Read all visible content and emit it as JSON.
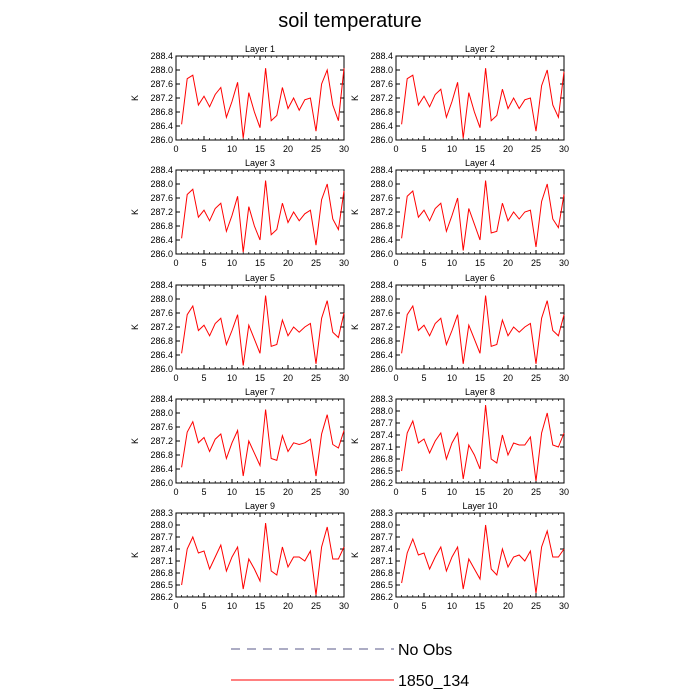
{
  "figure": {
    "title": "soil temperature"
  },
  "legend": {
    "items": [
      {
        "label": "No Obs",
        "color": "#5a5a8a",
        "style": "dashed"
      },
      {
        "label": "1850_134",
        "color": "#ff0000",
        "style": "solid"
      }
    ]
  },
  "chart_data": [
    {
      "type": "line",
      "title": "Layer 1",
      "xlabel": "",
      "ylabel": "K",
      "xlim": [
        0,
        30
      ],
      "ylim": [
        286.0,
        288.4
      ],
      "xticks": [
        0,
        5,
        10,
        15,
        20,
        25,
        30
      ],
      "yticks": [
        286.0,
        286.4,
        286.8,
        287.2,
        287.6,
        288.0,
        288.4
      ],
      "ytick_labels": [
        "286.0",
        "286.4",
        "286.8",
        "287.2",
        "287.6",
        "288.0",
        "288.4"
      ],
      "x": [
        1,
        2,
        3,
        4,
        5,
        6,
        7,
        8,
        9,
        10,
        11,
        12,
        13,
        14,
        15,
        16,
        17,
        18,
        19,
        20,
        21,
        22,
        23,
        24,
        25,
        26,
        27,
        28,
        29,
        30
      ],
      "series": [
        {
          "name": "1850_134",
          "color": "#ff0000",
          "values": [
            286.45,
            287.75,
            287.85,
            287.0,
            287.25,
            286.95,
            287.3,
            287.5,
            286.65,
            287.1,
            287.65,
            286.05,
            287.35,
            286.8,
            286.35,
            288.05,
            286.55,
            286.7,
            287.5,
            286.9,
            287.2,
            286.85,
            287.15,
            287.2,
            286.25,
            287.6,
            288.0,
            287.0,
            286.55,
            288.05
          ]
        }
      ]
    },
    {
      "type": "line",
      "title": "Layer 2",
      "xlabel": "",
      "ylabel": "K",
      "xlim": [
        0,
        30
      ],
      "ylim": [
        286.0,
        288.4
      ],
      "xticks": [
        0,
        5,
        10,
        15,
        20,
        25,
        30
      ],
      "yticks": [
        286.0,
        286.4,
        286.8,
        287.2,
        287.6,
        288.0,
        288.4
      ],
      "ytick_labels": [
        "286.0",
        "286.4",
        "286.8",
        "287.2",
        "287.6",
        "288.0",
        "288.4"
      ],
      "x": [
        1,
        2,
        3,
        4,
        5,
        6,
        7,
        8,
        9,
        10,
        11,
        12,
        13,
        14,
        15,
        16,
        17,
        18,
        19,
        20,
        21,
        22,
        23,
        24,
        25,
        26,
        27,
        28,
        29,
        30
      ],
      "series": [
        {
          "name": "1850_134",
          "color": "#ff0000",
          "values": [
            286.45,
            287.75,
            287.85,
            287.0,
            287.25,
            286.95,
            287.3,
            287.45,
            286.65,
            287.1,
            287.65,
            286.05,
            287.35,
            286.8,
            286.35,
            288.05,
            286.55,
            286.7,
            287.45,
            286.9,
            287.2,
            286.9,
            287.15,
            287.2,
            286.25,
            287.55,
            288.0,
            287.0,
            286.65,
            287.95
          ]
        }
      ]
    },
    {
      "type": "line",
      "title": "Layer 3",
      "xlabel": "",
      "ylabel": "K",
      "xlim": [
        0,
        30
      ],
      "ylim": [
        286.0,
        288.4
      ],
      "xticks": [
        0,
        5,
        10,
        15,
        20,
        25,
        30
      ],
      "yticks": [
        286.0,
        286.4,
        286.8,
        287.2,
        287.6,
        288.0,
        288.4
      ],
      "ytick_labels": [
        "286.0",
        "286.4",
        "286.8",
        "287.2",
        "287.6",
        "288.0",
        "288.4"
      ],
      "x": [
        1,
        2,
        3,
        4,
        5,
        6,
        7,
        8,
        9,
        10,
        11,
        12,
        13,
        14,
        15,
        16,
        17,
        18,
        19,
        20,
        21,
        22,
        23,
        24,
        25,
        26,
        27,
        28,
        29,
        30
      ],
      "series": [
        {
          "name": "1850_134",
          "color": "#ff0000",
          "values": [
            286.45,
            287.7,
            287.85,
            287.05,
            287.25,
            286.95,
            287.3,
            287.45,
            286.65,
            287.1,
            287.65,
            286.05,
            287.35,
            286.8,
            286.4,
            288.1,
            286.55,
            286.7,
            287.45,
            286.9,
            287.2,
            286.95,
            287.15,
            287.25,
            286.25,
            287.55,
            288.0,
            287.0,
            286.7,
            287.8
          ]
        }
      ]
    },
    {
      "type": "line",
      "title": "Layer 4",
      "xlabel": "",
      "ylabel": "K",
      "xlim": [
        0,
        30
      ],
      "ylim": [
        286.0,
        288.4
      ],
      "xticks": [
        0,
        5,
        10,
        15,
        20,
        25,
        30
      ],
      "yticks": [
        286.0,
        286.4,
        286.8,
        287.2,
        287.6,
        288.0,
        288.4
      ],
      "ytick_labels": [
        "286.0",
        "286.4",
        "286.8",
        "287.2",
        "287.6",
        "288.0",
        "288.4"
      ],
      "x": [
        1,
        2,
        3,
        4,
        5,
        6,
        7,
        8,
        9,
        10,
        11,
        12,
        13,
        14,
        15,
        16,
        17,
        18,
        19,
        20,
        21,
        22,
        23,
        24,
        25,
        26,
        27,
        28,
        29,
        30
      ],
      "series": [
        {
          "name": "1850_134",
          "color": "#ff0000",
          "values": [
            286.45,
            287.65,
            287.8,
            287.05,
            287.25,
            286.95,
            287.3,
            287.45,
            286.65,
            287.1,
            287.6,
            286.1,
            287.3,
            286.85,
            286.4,
            288.1,
            286.6,
            286.65,
            287.45,
            286.95,
            287.2,
            287.0,
            287.2,
            287.25,
            286.2,
            287.5,
            288.0,
            287.0,
            286.75,
            287.7
          ]
        }
      ]
    },
    {
      "type": "line",
      "title": "Layer 5",
      "xlabel": "",
      "ylabel": "K",
      "xlim": [
        0,
        30
      ],
      "ylim": [
        286.0,
        288.4
      ],
      "xticks": [
        0,
        5,
        10,
        15,
        20,
        25,
        30
      ],
      "yticks": [
        286.0,
        286.4,
        286.8,
        287.2,
        287.6,
        288.0,
        288.4
      ],
      "ytick_labels": [
        "286.0",
        "286.4",
        "286.8",
        "287.2",
        "287.6",
        "288.0",
        "288.4"
      ],
      "x": [
        1,
        2,
        3,
        4,
        5,
        6,
        7,
        8,
        9,
        10,
        11,
        12,
        13,
        14,
        15,
        16,
        17,
        18,
        19,
        20,
        21,
        22,
        23,
        24,
        25,
        26,
        27,
        28,
        29,
        30
      ],
      "series": [
        {
          "name": "1850_134",
          "color": "#ff0000",
          "values": [
            286.45,
            287.55,
            287.8,
            287.1,
            287.25,
            286.95,
            287.3,
            287.45,
            286.7,
            287.1,
            287.55,
            286.1,
            287.25,
            286.85,
            286.45,
            288.1,
            286.65,
            286.7,
            287.4,
            286.95,
            287.2,
            287.05,
            287.2,
            287.3,
            286.15,
            287.45,
            287.95,
            287.05,
            286.9,
            287.6
          ]
        }
      ]
    },
    {
      "type": "line",
      "title": "Layer 6",
      "xlabel": "",
      "ylabel": "K",
      "xlim": [
        0,
        30
      ],
      "ylim": [
        286.0,
        288.4
      ],
      "xticks": [
        0,
        5,
        10,
        15,
        20,
        25,
        30
      ],
      "yticks": [
        286.0,
        286.4,
        286.8,
        287.2,
        287.6,
        288.0,
        288.4
      ],
      "ytick_labels": [
        "286.0",
        "286.4",
        "286.8",
        "287.2",
        "287.6",
        "288.0",
        "288.4"
      ],
      "x": [
        1,
        2,
        3,
        4,
        5,
        6,
        7,
        8,
        9,
        10,
        11,
        12,
        13,
        14,
        15,
        16,
        17,
        18,
        19,
        20,
        21,
        22,
        23,
        24,
        25,
        26,
        27,
        28,
        29,
        30
      ],
      "series": [
        {
          "name": "1850_134",
          "color": "#ff0000",
          "values": [
            286.45,
            287.55,
            287.8,
            287.1,
            287.25,
            286.95,
            287.3,
            287.45,
            286.7,
            287.1,
            287.55,
            286.15,
            287.25,
            286.85,
            286.45,
            288.1,
            286.65,
            286.7,
            287.4,
            286.95,
            287.2,
            287.05,
            287.2,
            287.3,
            286.15,
            287.45,
            287.95,
            287.1,
            286.95,
            287.55
          ]
        }
      ]
    },
    {
      "type": "line",
      "title": "Layer 7",
      "xlabel": "",
      "ylabel": "K",
      "xlim": [
        0,
        30
      ],
      "ylim": [
        286.0,
        288.4
      ],
      "xticks": [
        0,
        5,
        10,
        15,
        20,
        25,
        30
      ],
      "yticks": [
        286.0,
        286.4,
        286.8,
        287.2,
        287.6,
        288.0,
        288.4
      ],
      "ytick_labels": [
        "286.0",
        "286.4",
        "286.8",
        "287.2",
        "287.6",
        "288.0",
        "288.4"
      ],
      "x": [
        1,
        2,
        3,
        4,
        5,
        6,
        7,
        8,
        9,
        10,
        11,
        12,
        13,
        14,
        15,
        16,
        17,
        18,
        19,
        20,
        21,
        22,
        23,
        24,
        25,
        26,
        27,
        28,
        29,
        30
      ],
      "series": [
        {
          "name": "1850_134",
          "color": "#ff0000",
          "values": [
            286.45,
            287.45,
            287.75,
            287.15,
            287.3,
            286.9,
            287.25,
            287.4,
            286.7,
            287.15,
            287.5,
            286.2,
            287.2,
            286.85,
            286.5,
            288.1,
            286.7,
            286.65,
            287.35,
            286.9,
            287.15,
            287.1,
            287.15,
            287.25,
            286.2,
            287.4,
            287.95,
            287.1,
            287.0,
            287.5
          ]
        }
      ]
    },
    {
      "type": "line",
      "title": "Layer 8",
      "xlabel": "",
      "ylabel": "K",
      "xlim": [
        0,
        30
      ],
      "ylim": [
        286.2,
        288.3
      ],
      "xticks": [
        0,
        5,
        10,
        15,
        20,
        25,
        30
      ],
      "yticks": [
        286.2,
        286.5,
        286.8,
        287.1,
        287.4,
        287.7,
        288.0,
        288.3
      ],
      "ytick_labels": [
        "286.2",
        "286.5",
        "286.8",
        "287.1",
        "287.4",
        "287.7",
        "288.0",
        "288.3"
      ],
      "x": [
        1,
        2,
        3,
        4,
        5,
        6,
        7,
        8,
        9,
        10,
        11,
        12,
        13,
        14,
        15,
        16,
        17,
        18,
        19,
        20,
        21,
        22,
        23,
        24,
        25,
        26,
        27,
        28,
        29,
        30
      ],
      "series": [
        {
          "name": "1850_134",
          "color": "#ff0000",
          "values": [
            286.5,
            287.45,
            287.75,
            287.2,
            287.3,
            286.95,
            287.25,
            287.45,
            286.8,
            287.2,
            287.45,
            286.3,
            287.15,
            286.9,
            286.55,
            288.15,
            286.8,
            286.7,
            287.4,
            286.9,
            287.2,
            287.15,
            287.15,
            287.35,
            286.25,
            287.45,
            287.95,
            287.15,
            287.1,
            287.45
          ]
        }
      ]
    },
    {
      "type": "line",
      "title": "Layer 9",
      "xlabel": "",
      "ylabel": "K",
      "xlim": [
        0,
        30
      ],
      "ylim": [
        286.2,
        288.3
      ],
      "xticks": [
        0,
        5,
        10,
        15,
        20,
        25,
        30
      ],
      "yticks": [
        286.2,
        286.5,
        286.8,
        287.1,
        287.4,
        287.7,
        288.0,
        288.3
      ],
      "ytick_labels": [
        "286.2",
        "286.5",
        "286.8",
        "287.1",
        "287.4",
        "287.7",
        "288.0",
        "288.3"
      ],
      "x": [
        1,
        2,
        3,
        4,
        5,
        6,
        7,
        8,
        9,
        10,
        11,
        12,
        13,
        14,
        15,
        16,
        17,
        18,
        19,
        20,
        21,
        22,
        23,
        24,
        25,
        26,
        27,
        28,
        29,
        30
      ],
      "series": [
        {
          "name": "1850_134",
          "color": "#ff0000",
          "values": [
            286.5,
            287.4,
            287.7,
            287.3,
            287.35,
            286.9,
            287.2,
            287.5,
            286.85,
            287.2,
            287.45,
            286.4,
            287.15,
            286.9,
            286.6,
            288.05,
            286.85,
            286.75,
            287.45,
            286.95,
            287.2,
            287.2,
            287.1,
            287.35,
            286.25,
            287.45,
            287.95,
            287.15,
            287.15,
            287.45
          ]
        }
      ]
    },
    {
      "type": "line",
      "title": "Layer 10",
      "xlabel": "",
      "ylabel": "K",
      "xlim": [
        0,
        30
      ],
      "ylim": [
        286.2,
        288.3
      ],
      "xticks": [
        0,
        5,
        10,
        15,
        20,
        25,
        30
      ],
      "yticks": [
        286.2,
        286.5,
        286.8,
        287.1,
        287.4,
        287.7,
        288.0,
        288.3
      ],
      "ytick_labels": [
        "286.2",
        "286.5",
        "286.8",
        "287.1",
        "287.4",
        "287.7",
        "288.0",
        "288.3"
      ],
      "x": [
        1,
        2,
        3,
        4,
        5,
        6,
        7,
        8,
        9,
        10,
        11,
        12,
        13,
        14,
        15,
        16,
        17,
        18,
        19,
        20,
        21,
        22,
        23,
        24,
        25,
        26,
        27,
        28,
        29,
        30
      ],
      "series": [
        {
          "name": "1850_134",
          "color": "#ff0000",
          "values": [
            286.55,
            287.3,
            287.65,
            287.25,
            287.3,
            286.9,
            287.2,
            287.45,
            286.85,
            287.2,
            287.45,
            286.4,
            287.15,
            286.9,
            286.65,
            288.0,
            286.9,
            286.75,
            287.4,
            286.95,
            287.2,
            287.25,
            287.1,
            287.35,
            286.3,
            287.45,
            287.85,
            287.2,
            287.2,
            287.4
          ]
        }
      ]
    }
  ]
}
